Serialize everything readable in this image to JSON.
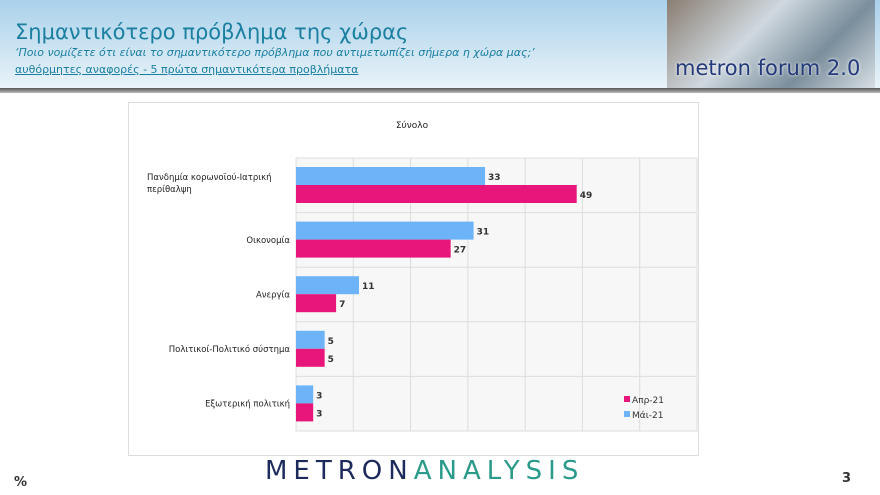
{
  "header": {
    "title": "Σημαντικότερο πρόβλημα της χώρας",
    "question": "‘Ποιο νομίζετε ότι  είναι το σημαντικότερο πρόβλημα που αντιμετωπίζει σήμερα η χώρα μας;’",
    "note": "αυθόρμητες αναφορές - 5 πρώτα σημαντικότερα προβλήματα",
    "logo_text": "metron forum 2.0"
  },
  "footer": {
    "brand_a": "METRON",
    "brand_b": "ANALYSIS",
    "unit": "%",
    "page": "3"
  },
  "chart_data": {
    "type": "bar",
    "orientation": "horizontal",
    "title": "Σύνολο",
    "categories": [
      "Πανδημία κορωνοϊού-Ιατρική περίθαλψη",
      "Οικονομία",
      "Ανεργία",
      "Πολιτικοί-Πολιτικό σύστημα",
      "Εξωτερική πολιτική"
    ],
    "series": [
      {
        "name": "Μάι-21",
        "color": "#6cb4f7",
        "values": [
          33,
          31,
          11,
          5,
          3
        ]
      },
      {
        "name": "Απρ-21",
        "color": "#e8157a",
        "values": [
          49,
          27,
          7,
          5,
          3
        ]
      }
    ],
    "xlim": [
      0,
      70
    ],
    "grid": true,
    "legend": "bottom-right"
  }
}
